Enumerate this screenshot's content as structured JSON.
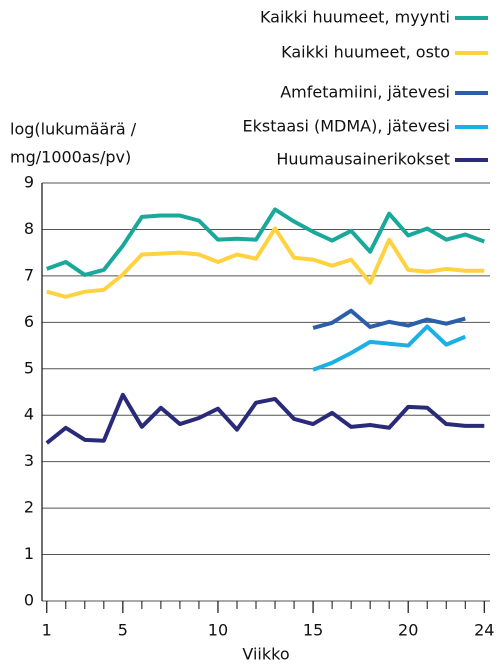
{
  "chart_data": {
    "type": "line",
    "ylabel": [
      "log(lukumäärä /",
      "mg/1000as/pv)"
    ],
    "xlabel": "Viikko",
    "x": [
      1,
      2,
      3,
      4,
      5,
      6,
      7,
      8,
      9,
      10,
      11,
      12,
      13,
      14,
      15,
      16,
      17,
      18,
      19,
      20,
      21,
      22,
      23,
      24
    ],
    "series": [
      {
        "name": "Kaikki huumeet, myynti",
        "color": "#1aa89a",
        "values": [
          7.15,
          7.3,
          7.02,
          7.13,
          7.65,
          8.27,
          8.3,
          8.3,
          8.19,
          7.78,
          7.8,
          7.78,
          8.43,
          8.17,
          7.95,
          7.76,
          7.97,
          7.52,
          8.34,
          7.87,
          8.02,
          7.78,
          7.89,
          7.74
        ]
      },
      {
        "name": "Kaikki huumeet, osto",
        "color": "#ffd23f",
        "values": [
          6.66,
          6.55,
          6.66,
          6.7,
          7.03,
          7.46,
          7.48,
          7.5,
          7.46,
          7.3,
          7.46,
          7.37,
          8.02,
          7.39,
          7.35,
          7.22,
          7.35,
          6.85,
          7.78,
          7.13,
          7.09,
          7.15,
          7.11,
          7.11
        ]
      },
      {
        "name": "Amfetamiini, jätevesi",
        "color": "#2b5faa",
        "values": [
          null,
          null,
          null,
          null,
          null,
          null,
          null,
          null,
          null,
          null,
          null,
          null,
          null,
          null,
          5.88,
          5.99,
          6.25,
          5.9,
          6.01,
          5.93,
          6.06,
          5.97,
          6.08,
          null
        ]
      },
      {
        "name": "Ekstaasi (MDMA), jätevesi",
        "color": "#1ab0e6",
        "values": [
          null,
          null,
          null,
          null,
          null,
          null,
          null,
          null,
          null,
          null,
          null,
          null,
          null,
          null,
          4.98,
          5.13,
          5.34,
          5.58,
          5.54,
          5.5,
          5.91,
          5.52,
          5.69,
          null
        ]
      },
      {
        "name": "Huumausainerikokset",
        "color": "#2a2a7a",
        "values": [
          3.4,
          3.73,
          3.47,
          3.45,
          4.44,
          3.75,
          4.16,
          3.81,
          3.94,
          4.14,
          3.69,
          4.27,
          4.35,
          3.92,
          3.81,
          4.05,
          3.75,
          3.79,
          3.73,
          4.18,
          4.16,
          3.81,
          3.77,
          3.77
        ]
      }
    ],
    "xlim": [
      0.75,
      24.3
    ],
    "xticks": [
      1,
      5,
      10,
      15,
      20,
      24
    ],
    "xminorticks": [
      2,
      3,
      4,
      6,
      7,
      8,
      9,
      11,
      12,
      13,
      14,
      16,
      17,
      18,
      19,
      21,
      22,
      23
    ],
    "ylim": [
      0,
      9
    ],
    "yticks": [
      0,
      1,
      2,
      3,
      4,
      5,
      6,
      7,
      8,
      9
    ],
    "grid": true,
    "legend": "top-right"
  }
}
